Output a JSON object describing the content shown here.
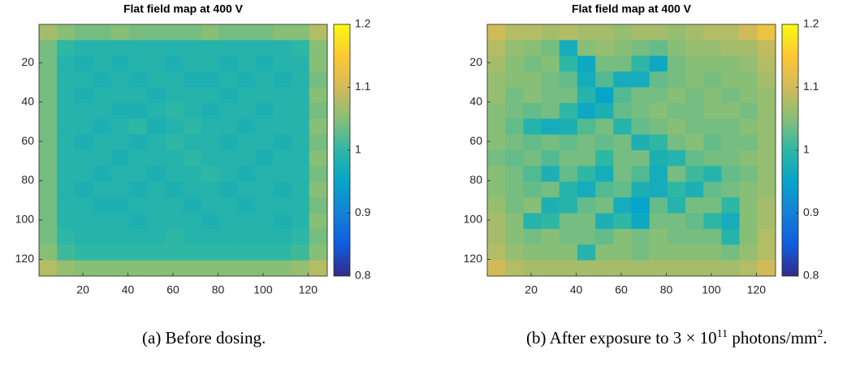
{
  "chart_data": [
    {
      "type": "heatmap",
      "title": "Flat field map at 400 V",
      "xlim": [
        0.5,
        128.5
      ],
      "ylim": [
        0.5,
        128.5
      ],
      "y_reversed": true,
      "xticks": [
        20,
        40,
        60,
        80,
        100,
        120
      ],
      "yticks": [
        20,
        40,
        60,
        80,
        100,
        120
      ],
      "clim": [
        0.8,
        1.2
      ],
      "cticks": [
        0.8,
        0.9,
        1,
        1.1,
        1.2
      ],
      "colormap": [
        "#352a87",
        "#0f5cdd",
        "#1481d6",
        "#06a4ca",
        "#2eb7a4",
        "#87bf77",
        "#d1bb59",
        "#fec832",
        "#f9fb0e"
      ],
      "z": [
        [
          1.07,
          1.05,
          1.04,
          1.04,
          1.05,
          1.04,
          1.04,
          1.04,
          1.04,
          1.05,
          1.04,
          1.04,
          1.04,
          1.05,
          1.05,
          1.08
        ],
        [
          1.04,
          1.0,
          0.99,
          0.99,
          0.99,
          0.99,
          0.99,
          0.99,
          0.99,
          0.99,
          0.99,
          0.99,
          0.99,
          0.99,
          1.0,
          1.05
        ],
        [
          1.04,
          0.99,
          0.98,
          0.99,
          0.98,
          0.99,
          0.99,
          0.98,
          0.99,
          0.99,
          0.98,
          0.99,
          0.98,
          0.99,
          0.99,
          1.05
        ],
        [
          1.04,
          0.99,
          0.99,
          0.98,
          0.99,
          0.98,
          0.99,
          0.99,
          0.98,
          0.98,
          0.99,
          0.98,
          0.99,
          0.98,
          0.99,
          1.04
        ],
        [
          1.04,
          0.99,
          0.98,
          0.99,
          0.99,
          0.99,
          0.98,
          0.99,
          0.99,
          0.99,
          0.98,
          0.99,
          0.99,
          0.99,
          0.99,
          1.05
        ],
        [
          1.04,
          0.99,
          0.99,
          0.99,
          0.98,
          0.98,
          0.99,
          1.0,
          0.99,
          0.98,
          0.99,
          0.99,
          0.98,
          0.99,
          0.99,
          1.04
        ],
        [
          1.04,
          0.99,
          0.99,
          0.98,
          0.99,
          1.0,
          0.98,
          0.99,
          1.0,
          0.99,
          0.99,
          0.98,
          0.99,
          0.99,
          0.99,
          1.05
        ],
        [
          1.04,
          0.99,
          0.98,
          0.99,
          0.99,
          0.98,
          0.99,
          1.0,
          0.99,
          0.99,
          0.98,
          0.99,
          0.99,
          0.98,
          0.99,
          1.04
        ],
        [
          1.04,
          0.99,
          0.99,
          0.99,
          0.98,
          0.99,
          0.99,
          0.99,
          1.0,
          0.99,
          0.99,
          0.99,
          0.98,
          0.99,
          0.99,
          1.05
        ],
        [
          1.04,
          0.99,
          0.99,
          0.98,
          0.99,
          0.99,
          0.98,
          0.99,
          0.99,
          1.0,
          0.99,
          0.98,
          0.99,
          0.99,
          0.99,
          1.04
        ],
        [
          1.04,
          0.99,
          0.98,
          0.99,
          0.99,
          0.98,
          0.99,
          0.98,
          0.99,
          0.99,
          0.98,
          0.99,
          0.99,
          0.98,
          0.99,
          1.05
        ],
        [
          1.04,
          0.99,
          0.99,
          0.98,
          0.98,
          0.99,
          0.99,
          0.99,
          0.98,
          0.99,
          0.99,
          0.98,
          0.99,
          0.99,
          0.99,
          1.04
        ],
        [
          1.04,
          0.99,
          0.99,
          0.99,
          0.99,
          0.98,
          0.99,
          0.99,
          0.99,
          0.98,
          0.99,
          0.99,
          0.99,
          0.98,
          0.99,
          1.05
        ],
        [
          1.04,
          1.0,
          0.99,
          0.99,
          0.99,
          0.99,
          0.99,
          1.0,
          0.99,
          0.99,
          0.99,
          0.99,
          0.99,
          0.99,
          1.0,
          1.04
        ],
        [
          1.05,
          1.01,
          1.0,
          1.0,
          1.0,
          1.0,
          1.0,
          1.0,
          1.0,
          1.0,
          1.0,
          1.0,
          1.0,
          1.0,
          1.01,
          1.05
        ],
        [
          1.08,
          1.06,
          1.05,
          1.05,
          1.05,
          1.05,
          1.05,
          1.05,
          1.05,
          1.05,
          1.05,
          1.05,
          1.05,
          1.05,
          1.06,
          1.08
        ]
      ],
      "caption": [
        "(a) Before dosing."
      ]
    },
    {
      "type": "heatmap",
      "title": "Flat field map at 400 V",
      "xlim": [
        0.5,
        128.5
      ],
      "ylim": [
        0.5,
        128.5
      ],
      "y_reversed": true,
      "xticks": [
        20,
        40,
        60,
        80,
        100,
        120
      ],
      "yticks": [
        20,
        40,
        60,
        80,
        100,
        120
      ],
      "clim": [
        0.8,
        1.2
      ],
      "cticks": [
        0.8,
        0.9,
        1,
        1.1,
        1.2
      ],
      "colormap": [
        "#352a87",
        "#0f5cdd",
        "#1481d6",
        "#06a4ca",
        "#2eb7a4",
        "#87bf77",
        "#d1bb59",
        "#fec832",
        "#f9fb0e"
      ],
      "z": [
        [
          1.1,
          1.08,
          1.08,
          1.07,
          1.08,
          1.07,
          1.07,
          1.06,
          1.07,
          1.07,
          1.06,
          1.07,
          1.08,
          1.08,
          1.1,
          1.13
        ],
        [
          1.08,
          1.06,
          1.05,
          1.04,
          0.97,
          1.05,
          1.06,
          1.05,
          1.04,
          1.03,
          1.05,
          1.06,
          1.06,
          1.07,
          1.07,
          1.09
        ],
        [
          1.07,
          1.05,
          1.04,
          1.05,
          1.0,
          0.96,
          1.04,
          1.04,
          1.0,
          0.96,
          1.04,
          1.05,
          1.05,
          1.05,
          1.06,
          1.08
        ],
        [
          1.06,
          1.05,
          1.05,
          1.04,
          1.03,
          0.97,
          1.02,
          0.97,
          0.97,
          1.03,
          1.04,
          1.05,
          1.04,
          1.05,
          1.05,
          1.07
        ],
        [
          1.06,
          1.04,
          1.05,
          1.04,
          1.04,
          0.99,
          0.95,
          1.02,
          1.04,
          1.04,
          1.05,
          1.04,
          1.05,
          1.04,
          1.05,
          1.06
        ],
        [
          1.05,
          1.04,
          1.03,
          1.04,
          1.0,
          0.96,
          0.98,
          1.03,
          1.04,
          1.05,
          1.04,
          1.04,
          1.05,
          1.05,
          1.04,
          1.06
        ],
        [
          1.05,
          1.03,
          0.99,
          0.97,
          0.98,
          1.02,
          1.04,
          0.99,
          1.03,
          1.04,
          1.05,
          1.04,
          1.04,
          1.04,
          1.05,
          1.06
        ],
        [
          1.05,
          1.04,
          1.03,
          1.04,
          1.03,
          1.04,
          1.03,
          1.04,
          0.98,
          1.0,
          1.04,
          1.05,
          1.03,
          1.04,
          1.04,
          1.06
        ],
        [
          1.04,
          1.03,
          1.04,
          1.02,
          1.04,
          1.04,
          1.0,
          1.04,
          1.04,
          0.98,
          0.99,
          1.03,
          1.04,
          1.04,
          1.05,
          1.06
        ],
        [
          1.05,
          1.04,
          1.02,
          0.98,
          1.03,
          1.0,
          0.97,
          1.04,
          1.02,
          0.97,
          1.04,
          1.01,
          0.99,
          1.03,
          1.04,
          1.06
        ],
        [
          1.05,
          1.04,
          1.03,
          1.04,
          0.99,
          0.97,
          1.02,
          1.03,
          0.98,
          0.97,
          1.0,
          0.98,
          1.03,
          1.04,
          1.05,
          1.06
        ],
        [
          1.06,
          1.04,
          1.05,
          0.98,
          0.99,
          1.03,
          1.04,
          0.97,
          0.95,
          1.03,
          0.99,
          1.04,
          1.04,
          1.0,
          1.05,
          1.07
        ],
        [
          1.07,
          1.05,
          0.99,
          1.0,
          1.04,
          1.04,
          0.98,
          1.0,
          0.96,
          1.04,
          1.04,
          1.03,
          1.0,
          0.97,
          1.05,
          1.07
        ],
        [
          1.07,
          1.05,
          1.04,
          1.05,
          1.04,
          1.04,
          1.03,
          1.05,
          1.04,
          1.05,
          1.04,
          1.04,
          1.04,
          0.99,
          1.05,
          1.08
        ],
        [
          1.08,
          1.06,
          1.05,
          1.05,
          1.05,
          0.99,
          1.05,
          1.05,
          1.04,
          1.05,
          1.05,
          1.05,
          1.05,
          1.04,
          1.06,
          1.08
        ],
        [
          1.1,
          1.08,
          1.07,
          1.07,
          1.07,
          1.07,
          1.07,
          1.07,
          1.07,
          1.07,
          1.07,
          1.07,
          1.07,
          1.07,
          1.08,
          1.1
        ]
      ],
      "caption": [
        "(b) After exposure to 3 × 10",
        "11",
        " photons/mm",
        "2",
        "."
      ]
    }
  ]
}
